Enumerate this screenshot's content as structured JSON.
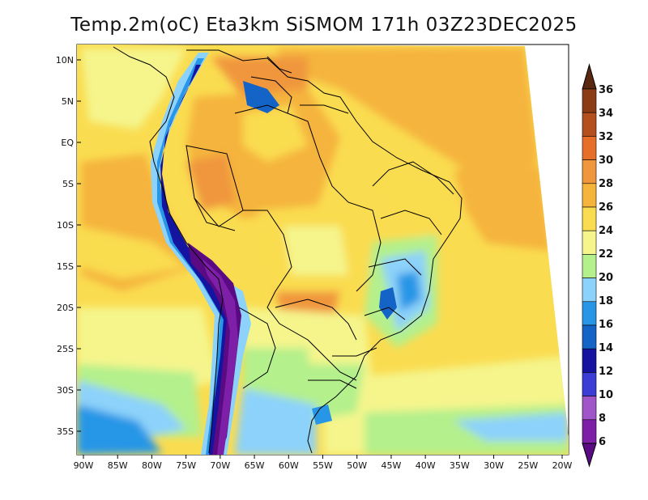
{
  "title": "Temp.2m(oC) Eta3km SiSMOM 171h 03Z23DEC2025",
  "lat_ticks": [
    "10N",
    "5N",
    "EQ",
    "5S",
    "10S",
    "15S",
    "20S",
    "25S",
    "30S",
    "35S"
  ],
  "lon_ticks": [
    "90W",
    "85W",
    "80W",
    "75W",
    "70W",
    "65W",
    "60W",
    "55W",
    "50W",
    "45W",
    "40W",
    "35W",
    "30W",
    "25W",
    "20W"
  ],
  "colorbar": {
    "labels": [
      "6",
      "8",
      "10",
      "12",
      "14",
      "16",
      "18",
      "20",
      "22",
      "24",
      "26",
      "28",
      "30",
      "32",
      "34",
      "36"
    ],
    "colors": [
      "#5a0a82",
      "#7e1fa8",
      "#a055c8",
      "#3c3cd6",
      "#1414a0",
      "#1464c8",
      "#2896e6",
      "#8cd2fa",
      "#b4f08c",
      "#f5f58c",
      "#fadc50",
      "#f5b43c",
      "#f0963c",
      "#e66e28",
      "#b4501e",
      "#8c3c14",
      "#5a2810"
    ]
  }
}
